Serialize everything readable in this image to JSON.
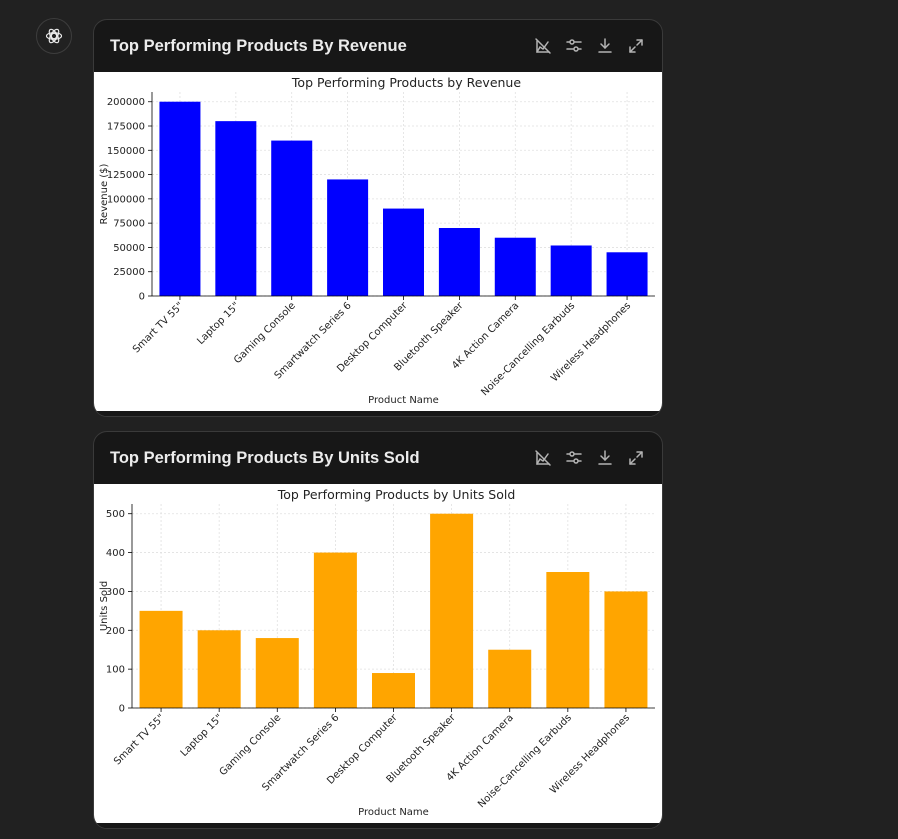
{
  "cards": [
    {
      "title": "Top Performing Products By Revenue",
      "toolbar": [
        "disable-interactivity-icon",
        "filter-icon",
        "download-icon",
        "expand-icon"
      ]
    },
    {
      "title": "Top Performing Products By Units Sold",
      "toolbar": [
        "disable-interactivity-icon",
        "filter-icon",
        "download-icon",
        "expand-icon"
      ]
    }
  ],
  "colors": {
    "page_bg": "#212121",
    "card_header": "#171717",
    "revenue_bar": "#0000ff",
    "units_bar": "#ffa500"
  },
  "chart_data": [
    {
      "type": "bar",
      "title": "Top Performing Products by Revenue",
      "xlabel": "Product Name",
      "ylabel": "Revenue ($)",
      "categories": [
        "Smart TV 55\"",
        "Laptop 15\"",
        "Gaming Console",
        "Smartwatch Series 6",
        "Desktop Computer",
        "Bluetooth Speaker",
        "4K Action Camera",
        "Noise-Cancelling Earbuds",
        "Wireless Headphones"
      ],
      "values": [
        200000,
        180000,
        160000,
        120000,
        90000,
        70000,
        60000,
        52000,
        45000
      ],
      "ylim": [
        0,
        210000
      ],
      "yticks": [
        0,
        25000,
        50000,
        75000,
        100000,
        125000,
        150000,
        175000,
        200000
      ],
      "grid": true,
      "color": "#0000ff"
    },
    {
      "type": "bar",
      "title": "Top Performing Products by Units Sold",
      "xlabel": "Product Name",
      "ylabel": "Units Sold",
      "categories": [
        "Smart TV 55\"",
        "Laptop 15\"",
        "Gaming Console",
        "Smartwatch Series 6",
        "Desktop Computer",
        "Bluetooth Speaker",
        "4K Action Camera",
        "Noise-Cancelling Earbuds",
        "Wireless Headphones"
      ],
      "values": [
        250,
        200,
        180,
        400,
        90,
        500,
        150,
        350,
        300
      ],
      "ylim": [
        0,
        525
      ],
      "yticks": [
        0,
        100,
        200,
        300,
        400,
        500
      ],
      "grid": true,
      "color": "#ffa500"
    }
  ]
}
